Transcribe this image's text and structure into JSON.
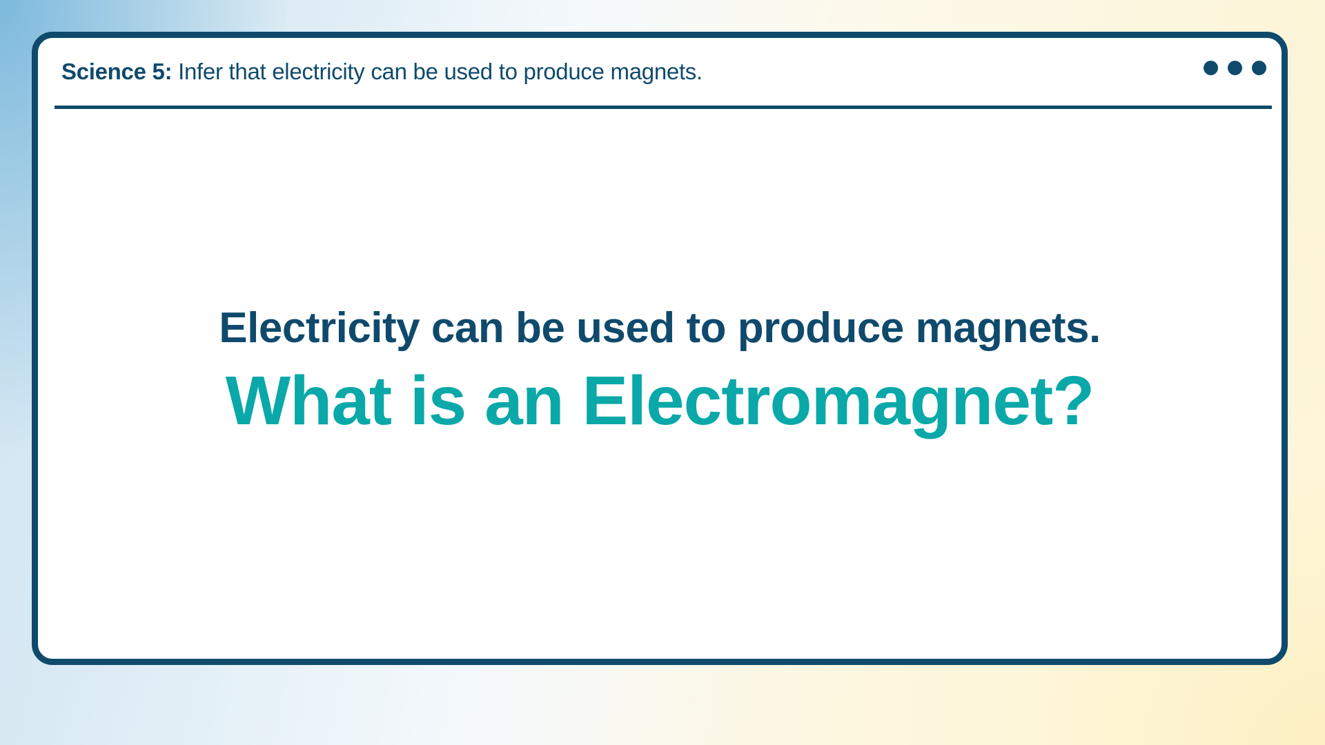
{
  "header": {
    "label": "Science 5:",
    "text": "Infer that electricity can be used to produce magnets."
  },
  "content": {
    "line1": "Electricity can be used to produce magnets.",
    "line2": "What is an Electromagnet?"
  },
  "colors": {
    "primary": "#0f4a6c",
    "accent": "#0aa8a8"
  },
  "icons": {
    "menu": "more-dots-icon"
  }
}
